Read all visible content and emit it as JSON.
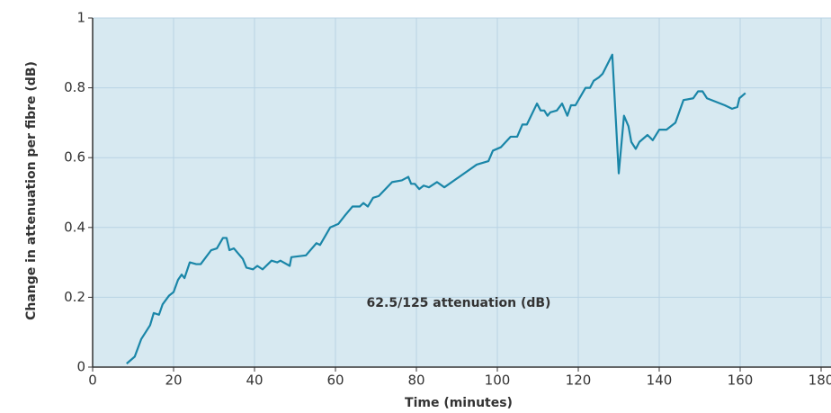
{
  "chart_data": {
    "type": "line",
    "x_label": "Time (minutes)",
    "y_label": "Change in attenuation per fibre (dB)",
    "annotation": "62.5/125 attenuation (dB)",
    "color": "#1a86a8",
    "background": "#d7e9f1",
    "grid": true,
    "xlim": [
      0,
      180
    ],
    "xticks": [
      0,
      20,
      40,
      60,
      80,
      100,
      120,
      140,
      160,
      180
    ],
    "ylim": [
      0,
      1
    ],
    "yticks": [
      0,
      0.2,
      0.4,
      0.6,
      0.8,
      1
    ],
    "x": [
      8.4,
      10.4,
      12,
      14.2,
      15.1,
      16.4,
      17.3,
      18.9,
      20,
      21.1,
      22,
      22.7,
      24,
      25.6,
      26.7,
      29.3,
      30.7,
      32.2,
      33.1,
      33.8,
      34.9,
      37.1,
      38,
      39.6,
      40.7,
      42,
      44.2,
      45.6,
      46.4,
      48.7,
      49.1,
      52.7,
      55.3,
      56.2,
      58.7,
      60.7,
      62.4,
      64.2,
      66,
      66.9,
      68,
      69.3,
      70.7,
      74,
      76.4,
      78,
      78.7,
      79.6,
      80.7,
      81.8,
      83.1,
      85.1,
      86.9,
      94.9,
      97.8,
      98.9,
      100.9,
      103.3,
      104.9,
      106.2,
      107.3,
      109.8,
      110.7,
      111.6,
      112.4,
      113.1,
      114.7,
      116,
      117.3,
      118.2,
      119.3,
      121.8,
      122.9,
      123.8,
      125.1,
      126,
      128.4,
      130,
      131.3,
      132.4,
      133.1,
      134.2,
      135.1,
      137.1,
      138.4,
      140,
      141.8,
      144,
      146,
      148.4,
      149.6,
      150.7,
      151.8,
      156.2,
      158,
      159.3,
      159.8,
      161.3
    ],
    "values": [
      0.01,
      0.03,
      0.08,
      0.12,
      0.155,
      0.15,
      0.18,
      0.205,
      0.215,
      0.25,
      0.265,
      0.255,
      0.3,
      0.295,
      0.295,
      0.335,
      0.34,
      0.37,
      0.37,
      0.335,
      0.34,
      0.31,
      0.285,
      0.28,
      0.29,
      0.28,
      0.305,
      0.3,
      0.305,
      0.29,
      0.315,
      0.32,
      0.355,
      0.35,
      0.4,
      0.41,
      0.435,
      0.46,
      0.46,
      0.47,
      0.46,
      0.485,
      0.49,
      0.53,
      0.535,
      0.545,
      0.525,
      0.525,
      0.51,
      0.52,
      0.515,
      0.53,
      0.515,
      0.58,
      0.59,
      0.62,
      0.63,
      0.66,
      0.66,
      0.695,
      0.695,
      0.755,
      0.735,
      0.735,
      0.72,
      0.73,
      0.735,
      0.755,
      0.72,
      0.75,
      0.75,
      0.8,
      0.8,
      0.82,
      0.83,
      0.84,
      0.895,
      0.555,
      0.72,
      0.69,
      0.645,
      0.625,
      0.645,
      0.665,
      0.65,
      0.68,
      0.68,
      0.7,
      0.765,
      0.77,
      0.79,
      0.79,
      0.77,
      0.75,
      0.74,
      0.745,
      0.77,
      0.785
    ]
  }
}
